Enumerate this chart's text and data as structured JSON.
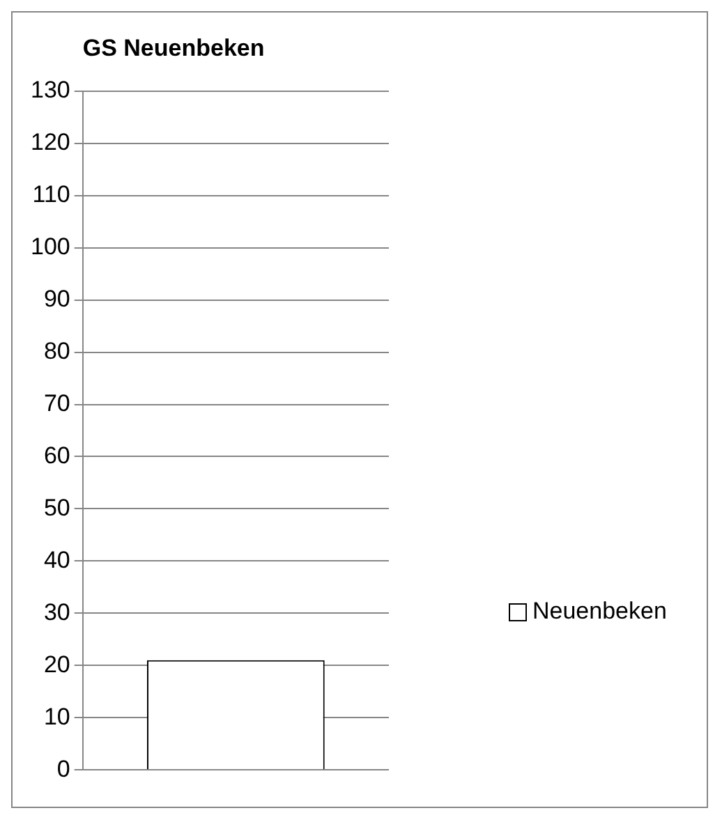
{
  "chart_data": {
    "type": "bar",
    "title": "GS Neuenbeken",
    "categories": [
      null
    ],
    "series": [
      {
        "name": "Neuenbeken",
        "color": "#ffffff",
        "values": [
          21
        ]
      }
    ],
    "ylim": [
      0,
      130
    ],
    "yticks": [
      0,
      10,
      20,
      30,
      40,
      50,
      60,
      70,
      80,
      90,
      100,
      110,
      120,
      130
    ],
    "grid": "y",
    "legend": "right"
  }
}
